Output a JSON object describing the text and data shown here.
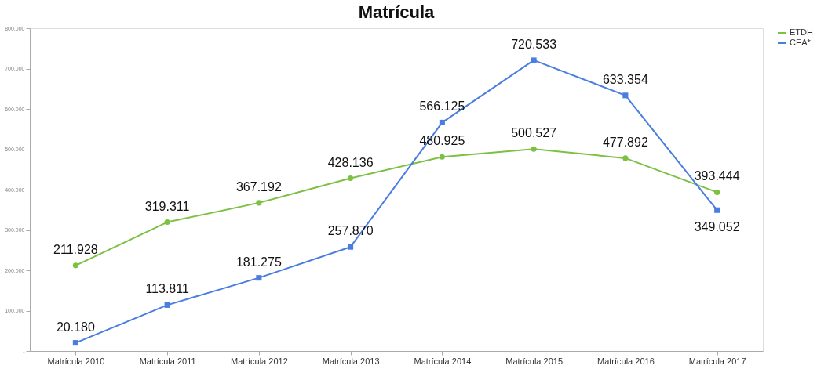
{
  "chart_data": {
    "type": "line",
    "title": "Matrícula",
    "categories": [
      "Matrícula 2010",
      "Matrícula 2011",
      "Matrícula 2012",
      "Matrícula 2013",
      "Matrícula 2014",
      "Matrícula 2015",
      "Matrícula 2016",
      "Matrícula 2017"
    ],
    "series": [
      {
        "name": "ETDH",
        "color": "#7cc142",
        "marker": "circle",
        "values": [
          211928,
          319311,
          367192,
          428136,
          480925,
          500527,
          477892,
          393444
        ],
        "value_labels": [
          "211.928",
          "319.311",
          "367.192",
          "428.136",
          "480.925",
          "500.527",
          "477.892",
          "393.444"
        ]
      },
      {
        "name": "CEA*",
        "color": "#4a7de0",
        "marker": "square",
        "values": [
          20180,
          113811,
          181275,
          257870,
          566125,
          720533,
          633354,
          349052
        ],
        "value_labels": [
          "20.180",
          "113.811",
          "181.275",
          "257.870",
          "566.125",
          "720.533",
          "633.354",
          "349.052"
        ]
      }
    ],
    "ylim": [
      0,
      800000
    ],
    "yticks": [
      {
        "value": 0,
        "label": "-"
      },
      {
        "value": 100000,
        "label": "100.000"
      },
      {
        "value": 200000,
        "label": "200.000"
      },
      {
        "value": 300000,
        "label": "300.000"
      },
      {
        "value": 400000,
        "label": "400.000"
      },
      {
        "value": 500000,
        "label": "500.000"
      },
      {
        "value": 600000,
        "label": "600.000"
      },
      {
        "value": 700000,
        "label": "700.000"
      },
      {
        "value": 800000,
        "label": "800.000"
      }
    ],
    "grid": false,
    "legend": "right",
    "line_style": "solid"
  }
}
